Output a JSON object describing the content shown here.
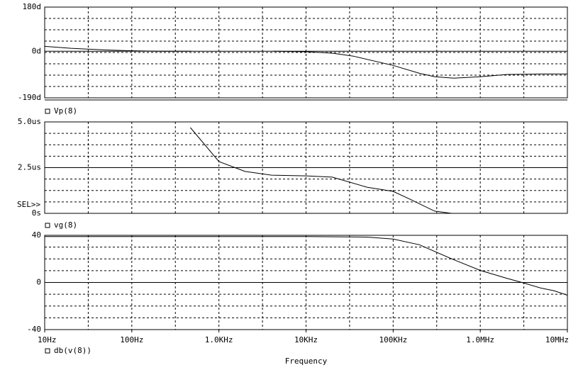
{
  "chart_data": [
    {
      "type": "line",
      "log_x": true,
      "xlim": [
        10,
        10000000
      ],
      "ylim": [
        -190,
        180
      ],
      "yticks": [
        {
          "value": 180,
          "label": "180d"
        },
        {
          "value": 0,
          "label": "0d"
        },
        {
          "value": -190,
          "label": "-190d"
        }
      ],
      "grid": true,
      "x": [
        10,
        20,
        50,
        100,
        200,
        480,
        1000,
        4200,
        10000,
        20000,
        35000,
        100000,
        200000,
        300000,
        500000,
        1000000,
        2000000,
        5000000,
        10000000
      ],
      "series": [
        {
          "name": "Vp(8)",
          "color": "#000000",
          "values": [
            20,
            12,
            5,
            2,
            0,
            0,
            null,
            0,
            -2,
            -8,
            -20,
            -58,
            -90,
            -104,
            -110,
            -104,
            -95,
            -93,
            -93
          ]
        }
      ]
    },
    {
      "type": "line",
      "log_x": true,
      "xlim": [
        10,
        10000000
      ],
      "ylim": [
        0,
        5
      ],
      "yticks": [
        {
          "value": 5,
          "label": "5.0us"
        },
        {
          "value": 2.5,
          "label": "2.5us"
        },
        {
          "value": 0,
          "label": "0s"
        }
      ],
      "grid": true,
      "annotation": "SEL>>",
      "x": [
        470,
        1000,
        2000,
        4000,
        10000,
        20000,
        50000,
        100000,
        150000,
        300000,
        470000
      ],
      "series": [
        {
          "name": "vg(8)",
          "color": "#000000",
          "values": [
            4.69,
            2.83,
            2.29,
            2.09,
            2.05,
            1.98,
            1.43,
            1.2,
            0.81,
            0.12,
            0
          ]
        }
      ]
    },
    {
      "type": "line",
      "log_x": true,
      "xlim": [
        10,
        10000000
      ],
      "ylim": [
        -40,
        40
      ],
      "yticks": [
        40,
        0,
        -40
      ],
      "xticks": [
        {
          "value": 10,
          "label": "10Hz"
        },
        {
          "value": 100,
          "label": "100Hz"
        },
        {
          "value": 1000,
          "label": "1.0KHz"
        },
        {
          "value": 10000,
          "label": "10KHz"
        },
        {
          "value": 100000,
          "label": "100KHz"
        },
        {
          "value": 1000000,
          "label": "1.0MHz"
        },
        {
          "value": 10000000,
          "label": "10MHz"
        }
      ],
      "xlabel": "Frequency",
      "grid": true,
      "x": [
        10,
        100,
        1000,
        10000,
        50000,
        100000,
        200000,
        500000,
        1000000,
        2000000,
        3000000,
        5000000,
        7000000,
        10000000
      ],
      "series": [
        {
          "name": "db(v(8))",
          "color": "#000000",
          "values": [
            39,
            39,
            39,
            39,
            38.5,
            36.8,
            32,
            19.2,
            10.2,
            3.6,
            0,
            -4.8,
            -7,
            -10.8
          ]
        }
      ]
    }
  ]
}
